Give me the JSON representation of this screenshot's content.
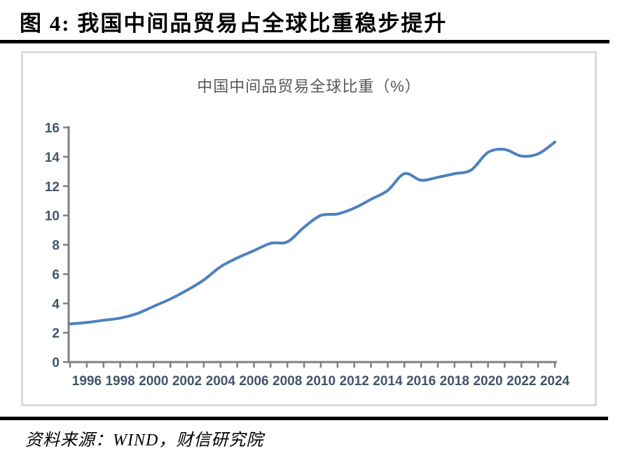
{
  "header": {
    "title": "图 4: 我国中间品贸易占全球比重稳步提升"
  },
  "source": {
    "text": "资料来源：WIND，财信研究院"
  },
  "chart_data": {
    "type": "line",
    "title": "中国中间品贸易全球比重（%）",
    "x": [
      1995,
      1996,
      1997,
      1998,
      1999,
      2000,
      2001,
      2002,
      2003,
      2004,
      2005,
      2006,
      2007,
      2008,
      2009,
      2010,
      2011,
      2012,
      2013,
      2014,
      2015,
      2016,
      2017,
      2018,
      2019,
      2020,
      2021,
      2022,
      2023,
      2024
    ],
    "values": [
      2.6,
      2.7,
      2.85,
      3.0,
      3.3,
      3.8,
      4.3,
      4.9,
      5.6,
      6.5,
      7.1,
      7.6,
      8.1,
      8.2,
      9.2,
      10.0,
      10.1,
      10.5,
      11.1,
      11.7,
      12.85,
      12.4,
      12.6,
      12.85,
      13.1,
      14.3,
      14.5,
      14.05,
      14.2,
      15.0
    ],
    "ylim": [
      0,
      16
    ],
    "y_ticks": [
      0,
      2,
      4,
      6,
      8,
      10,
      12,
      14,
      16
    ],
    "x_tick_labels": [
      "1996",
      "1998",
      "2000",
      "2002",
      "2004",
      "2006",
      "2008",
      "2010",
      "2012",
      "2014",
      "2016",
      "2018",
      "2020",
      "2022",
      "2024"
    ],
    "grid": false,
    "legend": "none",
    "smooth": true,
    "line_color": "#4f81bd",
    "axis_color": "#808080",
    "tick_label_color": "#44546a",
    "title_color": "#595959"
  }
}
